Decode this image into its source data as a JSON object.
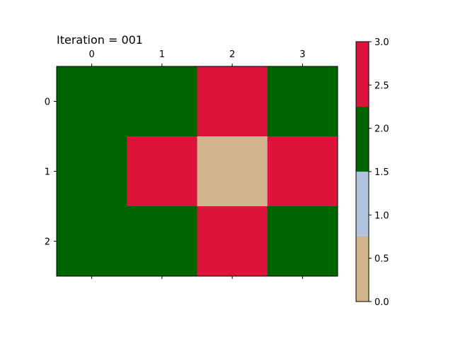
{
  "chart_data": {
    "type": "heatmap",
    "title": "Iteration = 001",
    "x": [
      "0",
      "1",
      "2",
      "3"
    ],
    "y": [
      "0",
      "1",
      "2"
    ],
    "values": [
      [
        2,
        2,
        3,
        2
      ],
      [
        2,
        3,
        0,
        3
      ],
      [
        2,
        2,
        3,
        2
      ]
    ],
    "xlabel": "",
    "ylabel": "",
    "x_axis_position": "top",
    "grid": false,
    "colorbar": {
      "range": [
        0.0,
        3.0
      ],
      "ticks": [
        "0.0",
        "0.5",
        "1.0",
        "1.5",
        "2.0",
        "2.5",
        "3.0"
      ],
      "bins": [
        {
          "from": 0.0,
          "to": 0.75,
          "color": "#d2b48c"
        },
        {
          "from": 0.75,
          "to": 1.5,
          "color": "#b0c4de"
        },
        {
          "from": 1.5,
          "to": 2.25,
          "color": "#006400"
        },
        {
          "from": 2.25,
          "to": 3.0,
          "color": "#dc143c"
        }
      ]
    }
  }
}
